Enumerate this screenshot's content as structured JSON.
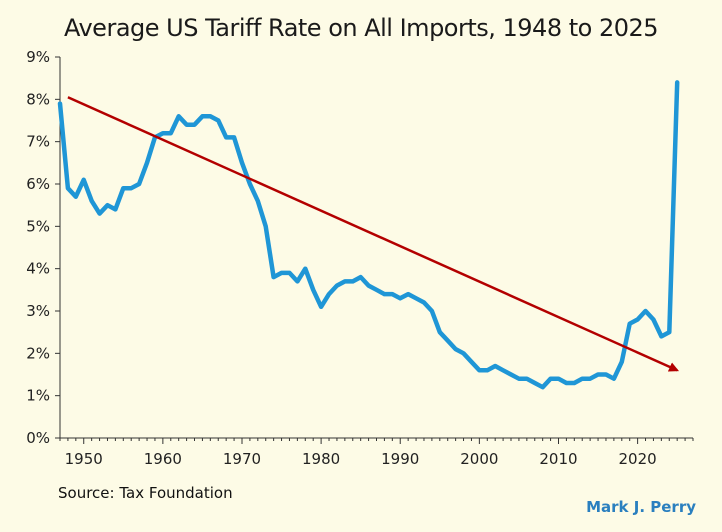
{
  "chart_data": {
    "type": "line",
    "title": "Average US Tariff Rate on All Imports, 1948 to 2025",
    "xlabel": "",
    "ylabel": "",
    "xlim": [
      1947,
      2027
    ],
    "ylim": [
      0,
      9
    ],
    "x_ticks": [
      1950,
      1960,
      1970,
      1980,
      1990,
      2000,
      2010,
      2020
    ],
    "x_tick_labels": [
      "1950",
      "1960",
      "1970",
      "1980",
      "1990",
      "2000",
      "2010",
      "2020"
    ],
    "y_ticks": [
      0,
      1,
      2,
      3,
      4,
      5,
      6,
      7,
      8,
      9
    ],
    "y_tick_labels": [
      "0%",
      "1%",
      "2%",
      "3%",
      "4%",
      "5%",
      "6%",
      "7%",
      "8%",
      "9%"
    ],
    "grid": false,
    "series": [
      {
        "color": "#1f96d6",
        "x": [
          1947,
          1948,
          1949,
          1950,
          1951,
          1952,
          1953,
          1954,
          1955,
          1956,
          1957,
          1958,
          1959,
          1960,
          1961,
          1962,
          1963,
          1964,
          1965,
          1966,
          1967,
          1968,
          1969,
          1970,
          1971,
          1972,
          1973,
          1974,
          1975,
          1976,
          1977,
          1978,
          1979,
          1980,
          1981,
          1982,
          1983,
          1984,
          1985,
          1986,
          1987,
          1988,
          1989,
          1990,
          1991,
          1992,
          1993,
          1994,
          1995,
          1996,
          1997,
          1998,
          1999,
          2000,
          2001,
          2002,
          2003,
          2004,
          2005,
          2006,
          2007,
          2008,
          2009,
          2010,
          2011,
          2012,
          2013,
          2014,
          2015,
          2016,
          2017,
          2018,
          2019,
          2020,
          2021,
          2022,
          2023,
          2024,
          2025
        ],
        "y": [
          7.9,
          5.9,
          5.7,
          6.1,
          5.6,
          5.3,
          5.5,
          5.4,
          5.9,
          5.9,
          6.0,
          6.5,
          7.1,
          7.2,
          7.2,
          7.6,
          7.4,
          7.4,
          7.6,
          7.6,
          7.5,
          7.1,
          7.1,
          6.5,
          6.0,
          5.6,
          5.0,
          3.8,
          3.9,
          3.9,
          3.7,
          4.0,
          3.5,
          3.1,
          3.4,
          3.6,
          3.7,
          3.7,
          3.8,
          3.6,
          3.5,
          3.4,
          3.4,
          3.3,
          3.4,
          3.3,
          3.2,
          3.0,
          2.5,
          2.3,
          2.1,
          2.0,
          1.8,
          1.6,
          1.6,
          1.7,
          1.6,
          1.5,
          1.4,
          1.4,
          1.3,
          1.2,
          1.4,
          1.4,
          1.3,
          1.3,
          1.4,
          1.4,
          1.5,
          1.5,
          1.4,
          1.8,
          2.7,
          2.8,
          3.0,
          2.8,
          2.4,
          2.5,
          8.4
        ]
      }
    ],
    "trend_arrow": {
      "color": "#b30000",
      "from": {
        "x": 1948,
        "y": 8.05
      },
      "to": {
        "x": 2025,
        "y": 1.6
      }
    }
  },
  "footer": {
    "source": "Source: Tax Foundation",
    "credit": "Mark J. Perry"
  }
}
